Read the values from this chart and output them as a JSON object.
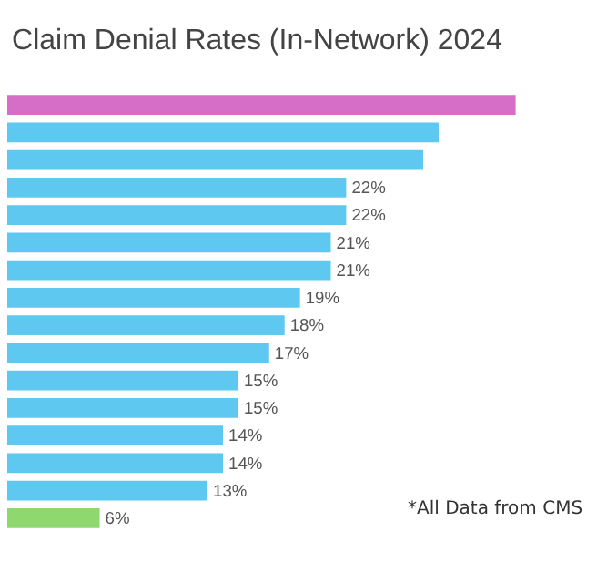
{
  "chart_data": {
    "type": "bar",
    "orientation": "horizontal",
    "title": "Claim Denial Rates (In-Network) 2024",
    "categories": [
      null,
      null,
      null,
      null,
      null,
      null,
      null,
      null,
      null,
      null,
      null,
      null,
      null,
      null,
      null,
      null
    ],
    "values": [
      33,
      28,
      27,
      22,
      22,
      21,
      21,
      19,
      18,
      17,
      15,
      15,
      14,
      14,
      13,
      6
    ],
    "value_labels": [
      null,
      null,
      null,
      "22%",
      "22%",
      "21%",
      "21%",
      "19%",
      "18%",
      "17%",
      "15%",
      "15%",
      "14%",
      "14%",
      "13%",
      "6%"
    ],
    "colors": [
      "#d66ec8",
      "#5fc8f0",
      "#5fc8f0",
      "#5fc8f0",
      "#5fc8f0",
      "#5fc8f0",
      "#5fc8f0",
      "#5fc8f0",
      "#5fc8f0",
      "#5fc8f0",
      "#5fc8f0",
      "#5fc8f0",
      "#5fc8f0",
      "#5fc8f0",
      "#5fc8f0",
      "#8fd870"
    ],
    "annotations": [
      "*All Data from CMS"
    ]
  }
}
